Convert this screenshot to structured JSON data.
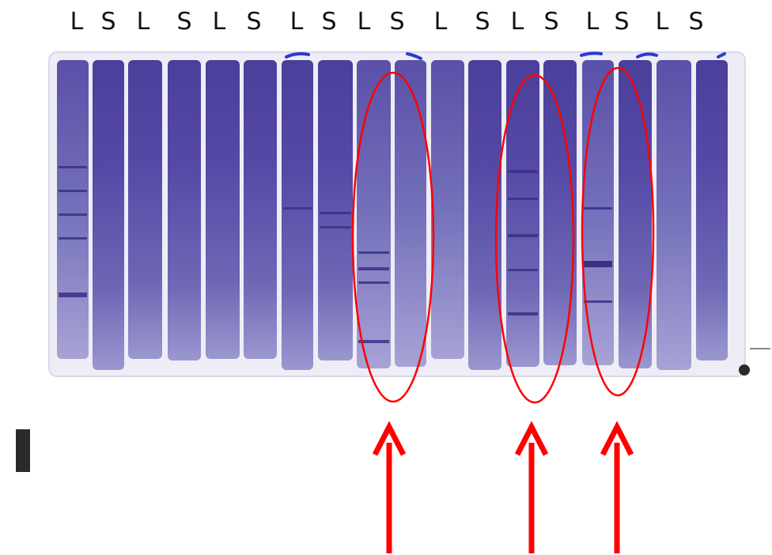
{
  "lane_labels": [
    "L",
    "S",
    "L",
    "S",
    "L",
    "S",
    "L",
    "S",
    "L",
    "S",
    "L",
    "S",
    "L",
    "S",
    "L",
    "S",
    "L",
    "S"
  ],
  "colors": {
    "gel_stain": "#4a3f9a",
    "gel_light": "#9b97cf",
    "annotation": "#ff0000"
  }
}
